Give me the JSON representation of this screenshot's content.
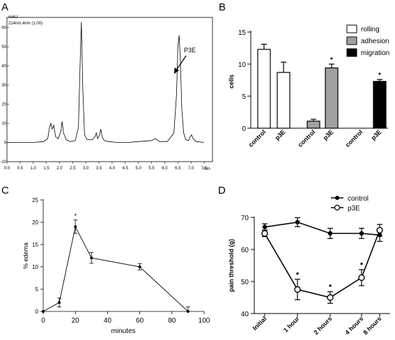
{
  "panels": {
    "A": {
      "label": "A",
      "unit_label": "mAU",
      "trace_label": "214nm,4nm (1.00)",
      "xlabel": "min",
      "annotation": "P3E",
      "xlim": [
        0.0,
        7.5
      ],
      "ylim": [
        -10,
        65
      ],
      "xticks": [
        "0.0",
        "0.5",
        "1.0",
        "1.5",
        "2.0",
        "2.5",
        "3.0",
        "3.5",
        "4.0",
        "4.5",
        "5.0",
        "5.5",
        "6.0",
        "6.5",
        "7.0",
        "7.5"
      ],
      "yticks": [
        "-10",
        "0",
        "10",
        "20",
        "30",
        "40",
        "50",
        "60"
      ]
    },
    "B": {
      "label": "B",
      "ylabel": "cells",
      "ylim": [
        0,
        15
      ],
      "yticks": [
        "0",
        "5",
        "10",
        "15"
      ],
      "legend": [
        "rolling",
        "adhesion",
        "migration"
      ],
      "group_labels": [
        "control",
        "p3E",
        "control",
        "p3E",
        "control",
        "p3E"
      ],
      "significance_marker": "*"
    },
    "C": {
      "label": "C",
      "xlabel": "minutes",
      "ylabel": "% edema",
      "xlim": [
        0,
        100
      ],
      "ylim": [
        0,
        25
      ],
      "xticks": [
        "0",
        "20",
        "40",
        "60",
        "80",
        "100"
      ],
      "yticks": [
        "0",
        "5",
        "10",
        "15",
        "20",
        "25"
      ],
      "significance_marker": "*"
    },
    "D": {
      "label": "D",
      "ylabel": "pain threshold (g)",
      "ylim": [
        40,
        70
      ],
      "yticks": [
        "40",
        "50",
        "60",
        "70"
      ],
      "categories": [
        "Initial",
        "1 hour",
        "2 hours",
        "4 hours",
        "8 hours"
      ],
      "legend": [
        "control",
        "p3E"
      ],
      "significance_marker": "*"
    }
  },
  "colors": {
    "rolling": "#ffffff",
    "adhesion": "#a0a0a0",
    "migration": "#000000",
    "line": "#000000"
  },
  "chart_data": [
    {
      "panel": "A",
      "type": "line",
      "x": [
        0.0,
        0.5,
        1.0,
        1.4,
        1.55,
        1.62,
        1.67,
        1.72,
        1.78,
        1.85,
        1.95,
        2.05,
        2.1,
        2.15,
        2.25,
        2.4,
        2.6,
        2.72,
        2.78,
        2.83,
        2.88,
        2.95,
        3.05,
        3.25,
        3.35,
        3.4,
        3.45,
        3.52,
        3.57,
        3.62,
        3.7,
        3.85,
        4.2,
        4.6,
        5.0,
        5.5,
        5.65,
        5.8,
        6.1,
        6.35,
        6.45,
        6.5,
        6.55,
        6.6,
        6.65,
        6.72,
        6.8,
        6.9,
        6.97,
        7.02,
        7.08,
        7.2,
        7.5
      ],
      "y": [
        0,
        0,
        0,
        0.5,
        2,
        8,
        10,
        7,
        9,
        3,
        2,
        6,
        11,
        5,
        1.5,
        0.5,
        1,
        8,
        40,
        63,
        30,
        4,
        1.5,
        1.5,
        3,
        5,
        2,
        4,
        7,
        3,
        1,
        0.5,
        0,
        0,
        0.5,
        1,
        2,
        0.5,
        0.5,
        5,
        25,
        50,
        56,
        42,
        18,
        5,
        1.5,
        1,
        3,
        4,
        2,
        0.5,
        0
      ]
    },
    {
      "panel": "B",
      "type": "bar",
      "categories": [
        "control",
        "p3E",
        "control",
        "p3E",
        "control",
        "p3E"
      ],
      "series": [
        {
          "name": "rolling",
          "values": [
            12.3,
            8.7,
            null,
            null,
            null,
            null
          ],
          "errors": [
            0.8,
            1.6,
            null,
            null,
            null,
            null
          ]
        },
        {
          "name": "adhesion",
          "values": [
            null,
            null,
            1.1,
            9.4,
            null,
            null
          ],
          "errors": [
            null,
            null,
            0.3,
            0.6,
            null,
            null
          ]
        },
        {
          "name": "migration",
          "values": [
            null,
            null,
            null,
            null,
            0,
            7.3
          ],
          "errors": [
            null,
            null,
            null,
            null,
            null,
            0.3
          ]
        }
      ],
      "significant": [
        false,
        false,
        false,
        true,
        false,
        true
      ],
      "ylabel": "cells",
      "ylim": [
        0,
        15
      ]
    },
    {
      "panel": "C",
      "type": "line",
      "x": [
        0,
        10,
        20,
        30,
        60,
        90
      ],
      "y": [
        0,
        2,
        19,
        12,
        10,
        0
      ],
      "errors": [
        0,
        1,
        1.5,
        1.2,
        0.7,
        1
      ],
      "significant": [
        false,
        false,
        true,
        false,
        false,
        false
      ],
      "xlabel": "minutes",
      "ylabel": "% edema",
      "xlim": [
        0,
        100
      ],
      "ylim": [
        0,
        25
      ]
    },
    {
      "panel": "D",
      "type": "line",
      "categories": [
        "Initial",
        "1 hour",
        "2 hours",
        "4 hours",
        "8 hours"
      ],
      "series": [
        {
          "name": "control",
          "values": [
            67,
            68.5,
            65,
            65,
            64.5
          ],
          "errors": [
            1,
            1.4,
            1.6,
            1.6,
            2
          ]
        },
        {
          "name": "p3E",
          "values": [
            65,
            47.5,
            45,
            51.2,
            66
          ],
          "errors": [
            1,
            3.2,
            1.8,
            2.5,
            1.8
          ]
        }
      ],
      "significant": [
        false,
        true,
        true,
        true,
        false
      ],
      "ylabel": "pain threshold (g)",
      "ylim": [
        40,
        70
      ]
    }
  ]
}
